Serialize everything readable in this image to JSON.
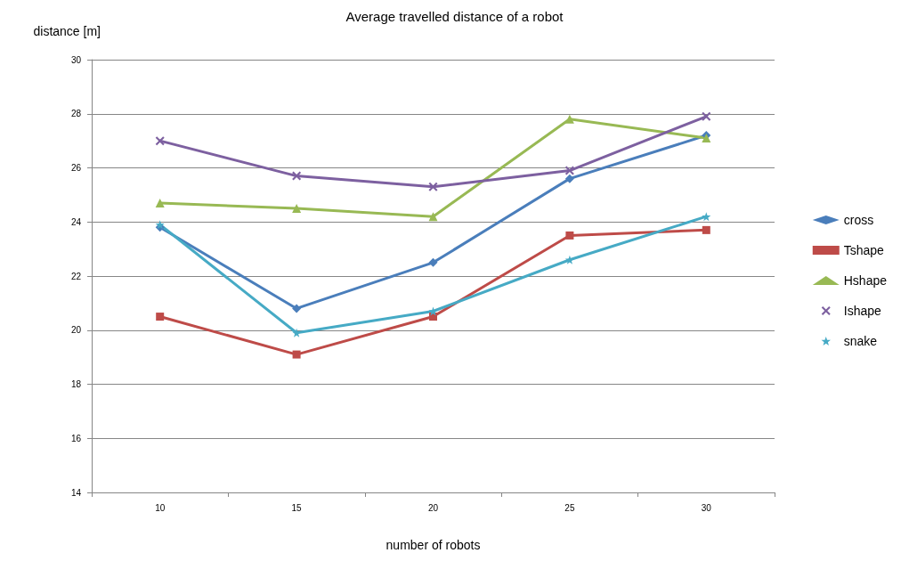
{
  "chart_data": {
    "type": "line",
    "title": "Average travelled distance of a robot",
    "xlabel": "number of robots",
    "ylabel": "distance [m]",
    "categories": [
      "10",
      "15",
      "20",
      "25",
      "30"
    ],
    "series": [
      {
        "name": "cross",
        "color": "#4a7ebb",
        "marker": "diamond",
        "values": [
          23.8,
          20.8,
          22.5,
          25.6,
          27.2
        ]
      },
      {
        "name": "Tshape",
        "color": "#be4b48",
        "marker": "square",
        "values": [
          20.5,
          19.1,
          20.5,
          23.5,
          23.7
        ]
      },
      {
        "name": "Hshape",
        "color": "#98b954",
        "marker": "triangle",
        "values": [
          24.7,
          24.5,
          24.2,
          27.8,
          27.1
        ]
      },
      {
        "name": "Ishape",
        "color": "#7d60a0",
        "marker": "cross",
        "values": [
          27.0,
          25.7,
          25.3,
          25.9,
          27.9
        ]
      },
      {
        "name": "snake",
        "color": "#46aac5",
        "marker": "star",
        "values": [
          23.9,
          19.9,
          20.7,
          22.6,
          24.2
        ]
      }
    ],
    "ylim": [
      14,
      30
    ],
    "yticks": [
      14,
      16,
      18,
      20,
      22,
      24,
      26,
      28,
      30
    ],
    "grid": "y",
    "legend": "right",
    "line_style": "solid"
  }
}
